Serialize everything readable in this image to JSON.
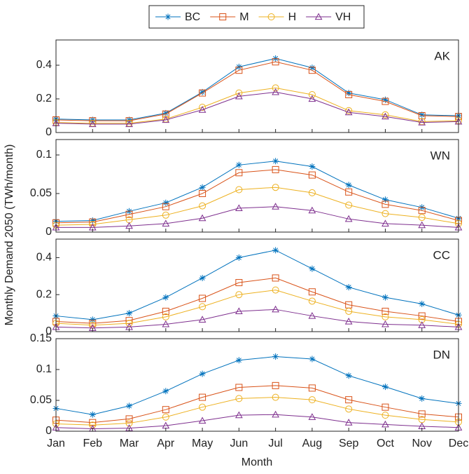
{
  "chart_data": [
    {
      "type": "line",
      "label": "AK",
      "ylabel": "Monthly Demand 2050 (TWh/month)",
      "ylim": [
        0,
        0.55
      ],
      "yticks": [
        0,
        0.2,
        0.4
      ],
      "grid": false,
      "legend": "top",
      "series": [
        {
          "name": "BC",
          "color": "#0072BD",
          "marker": "star",
          "values": [
            0.08,
            0.075,
            0.075,
            0.115,
            0.24,
            0.39,
            0.44,
            0.385,
            0.235,
            0.195,
            0.105,
            0.1
          ]
        },
        {
          "name": "M",
          "color": "#D95319",
          "marker": "square",
          "values": [
            0.075,
            0.07,
            0.07,
            0.11,
            0.235,
            0.37,
            0.42,
            0.37,
            0.225,
            0.185,
            0.1,
            0.095
          ]
        },
        {
          "name": "H",
          "color": "#EDB120",
          "marker": "circle",
          "values": [
            0.06,
            0.055,
            0.055,
            0.08,
            0.15,
            0.235,
            0.265,
            0.225,
            0.13,
            0.105,
            0.065,
            0.07
          ]
        },
        {
          "name": "VH",
          "color": "#7E2F8E",
          "marker": "triangle",
          "values": [
            0.055,
            0.05,
            0.05,
            0.075,
            0.135,
            0.215,
            0.24,
            0.2,
            0.12,
            0.095,
            0.06,
            0.065
          ]
        }
      ]
    },
    {
      "type": "line",
      "label": "WN",
      "ylim": [
        0,
        0.12
      ],
      "yticks": [
        0,
        0.05,
        0.1
      ],
      "grid": false,
      "series": [
        {
          "name": "BC",
          "color": "#0072BD",
          "marker": "star",
          "values": [
            0.014,
            0.015,
            0.027,
            0.038,
            0.058,
            0.087,
            0.092,
            0.085,
            0.061,
            0.042,
            0.032,
            0.018
          ]
        },
        {
          "name": "M",
          "color": "#D95319",
          "marker": "square",
          "values": [
            0.012,
            0.013,
            0.023,
            0.033,
            0.05,
            0.077,
            0.081,
            0.074,
            0.052,
            0.036,
            0.028,
            0.015
          ]
        },
        {
          "name": "H",
          "color": "#EDB120",
          "marker": "circle",
          "values": [
            0.009,
            0.01,
            0.016,
            0.022,
            0.034,
            0.055,
            0.058,
            0.051,
            0.035,
            0.024,
            0.019,
            0.011
          ]
        },
        {
          "name": "VH",
          "color": "#7E2F8E",
          "marker": "triangle",
          "values": [
            0.006,
            0.006,
            0.008,
            0.011,
            0.018,
            0.031,
            0.033,
            0.028,
            0.017,
            0.011,
            0.009,
            0.006
          ]
        }
      ]
    },
    {
      "type": "line",
      "label": "CC",
      "ylim": [
        0,
        0.5
      ],
      "yticks": [
        0,
        0.2,
        0.4
      ],
      "grid": false,
      "series": [
        {
          "name": "BC",
          "color": "#0072BD",
          "marker": "star",
          "values": [
            0.085,
            0.065,
            0.1,
            0.185,
            0.29,
            0.4,
            0.44,
            0.34,
            0.24,
            0.185,
            0.15,
            0.09
          ]
        },
        {
          "name": "M",
          "color": "#D95319",
          "marker": "square",
          "values": [
            0.055,
            0.045,
            0.06,
            0.11,
            0.18,
            0.265,
            0.29,
            0.215,
            0.145,
            0.11,
            0.085,
            0.055
          ]
        },
        {
          "name": "H",
          "color": "#EDB120",
          "marker": "circle",
          "values": [
            0.045,
            0.035,
            0.045,
            0.08,
            0.135,
            0.2,
            0.225,
            0.165,
            0.11,
            0.08,
            0.065,
            0.04
          ]
        },
        {
          "name": "VH",
          "color": "#7E2F8E",
          "marker": "triangle",
          "values": [
            0.025,
            0.02,
            0.025,
            0.04,
            0.065,
            0.11,
            0.12,
            0.085,
            0.055,
            0.04,
            0.035,
            0.025
          ]
        }
      ]
    },
    {
      "type": "line",
      "label": "DN",
      "xlabel": "Month",
      "categories": [
        "Jan",
        "Feb",
        "Mar",
        "Apr",
        "May",
        "Jun",
        "Jul",
        "Aug",
        "Sep",
        "Oct",
        "Nov",
        "Dec"
      ],
      "ylim": [
        0,
        0.15
      ],
      "yticks": [
        0,
        0.05,
        0.1,
        0.15
      ],
      "grid": false,
      "series": [
        {
          "name": "BC",
          "color": "#0072BD",
          "marker": "star",
          "values": [
            0.037,
            0.027,
            0.041,
            0.065,
            0.093,
            0.115,
            0.121,
            0.117,
            0.09,
            0.072,
            0.053,
            0.045
          ]
        },
        {
          "name": "M",
          "color": "#D95319",
          "marker": "square",
          "values": [
            0.018,
            0.014,
            0.02,
            0.035,
            0.055,
            0.071,
            0.074,
            0.07,
            0.051,
            0.039,
            0.028,
            0.023
          ]
        },
        {
          "name": "H",
          "color": "#EDB120",
          "marker": "circle",
          "values": [
            0.012,
            0.01,
            0.013,
            0.023,
            0.039,
            0.053,
            0.055,
            0.051,
            0.036,
            0.026,
            0.019,
            0.015
          ]
        },
        {
          "name": "VH",
          "color": "#7E2F8E",
          "marker": "triangle",
          "values": [
            0.006,
            0.004,
            0.005,
            0.009,
            0.017,
            0.026,
            0.027,
            0.023,
            0.014,
            0.011,
            0.008,
            0.006
          ]
        }
      ]
    }
  ]
}
